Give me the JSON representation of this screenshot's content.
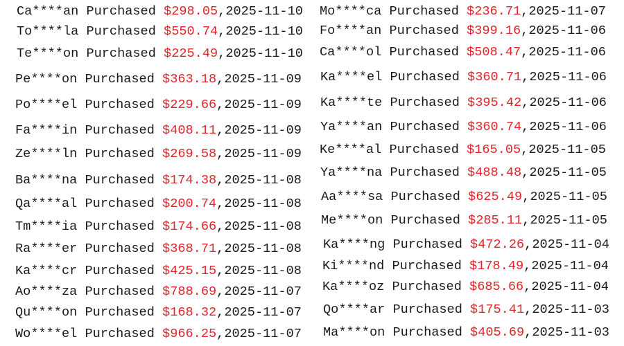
{
  "colors": {
    "text": "#1a1a1a",
    "amount": "#e0242a"
  },
  "columns": [
    {
      "rows": [
        {
          "name": "Ca****an",
          "action": "Purchased",
          "amount": "$298.05",
          "date": "2025-11-10"
        },
        {
          "name": "To****la",
          "action": "Purchased",
          "amount": "$550.74",
          "date": "2025-11-10"
        },
        {
          "name": "Te****on",
          "action": "Purchased",
          "amount": "$225.49",
          "date": "2025-11-10"
        },
        {
          "name": "Pe****on",
          "action": "Purchased",
          "amount": "$363.18",
          "date": "2025-11-09"
        },
        {
          "name": "Po****el",
          "action": "Purchased",
          "amount": "$229.66",
          "date": "2025-11-09"
        },
        {
          "name": "Fa****in",
          "action": "Purchased",
          "amount": "$408.11",
          "date": "2025-11-09"
        },
        {
          "name": "Ze****ln",
          "action": "Purchased",
          "amount": "$269.58",
          "date": "2025-11-09"
        },
        {
          "name": "Ba****na",
          "action": "Purchased",
          "amount": "$174.38",
          "date": "2025-11-08"
        },
        {
          "name": "Qa****al",
          "action": "Purchased",
          "amount": "$200.74",
          "date": "2025-11-08"
        },
        {
          "name": "Tm****ia",
          "action": "Purchased",
          "amount": "$174.66",
          "date": "2025-11-08"
        },
        {
          "name": "Ra****er",
          "action": "Purchased",
          "amount": "$368.71",
          "date": "2025-11-08"
        },
        {
          "name": "Ka****cr",
          "action": "Purchased",
          "amount": "$425.15",
          "date": "2025-11-08"
        },
        {
          "name": "Ao****za",
          "action": "Purchased",
          "amount": "$788.69",
          "date": "2025-11-07"
        },
        {
          "name": "Qu****on",
          "action": "Purchased",
          "amount": "$168.32",
          "date": "2025-11-07"
        },
        {
          "name": "Wo****el",
          "action": "Purchased",
          "amount": "$966.25",
          "date": "2025-11-07"
        }
      ]
    },
    {
      "rows": [
        {
          "name": "Mo****ca",
          "action": "Purchased",
          "amount": "$236.71",
          "date": "2025-11-07"
        },
        {
          "name": "Fo****an",
          "action": "Purchased",
          "amount": "$399.16",
          "date": "2025-11-06"
        },
        {
          "name": "Ca****ol",
          "action": "Purchased",
          "amount": "$508.47",
          "date": "2025-11-06"
        },
        {
          "name": "Ka****el",
          "action": "Purchased",
          "amount": "$360.71",
          "date": "2025-11-06"
        },
        {
          "name": "Ka****te",
          "action": "Purchased",
          "amount": "$395.42",
          "date": "2025-11-06"
        },
        {
          "name": "Ya****an",
          "action": "Purchased",
          "amount": "$360.74",
          "date": "2025-11-06"
        },
        {
          "name": "Ke****al",
          "action": "Purchased",
          "amount": "$165.05",
          "date": "2025-11-05"
        },
        {
          "name": "Ya****na",
          "action": "Purchased",
          "amount": "$488.48",
          "date": "2025-11-05"
        },
        {
          "name": "Aa****sa",
          "action": "Purchased",
          "amount": "$625.49",
          "date": "2025-11-05"
        },
        {
          "name": "Me****on",
          "action": "Purchased",
          "amount": "$285.11",
          "date": "2025-11-05"
        },
        {
          "name": "Ka****ng",
          "action": "Purchased",
          "amount": "$472.26",
          "date": "2025-11-04"
        },
        {
          "name": "Ki****nd",
          "action": "Purchased",
          "amount": "$178.49",
          "date": "2025-11-04"
        },
        {
          "name": "Ka****oz",
          "action": "Purchased",
          "amount": "$685.66",
          "date": "2025-11-04"
        },
        {
          "name": "Qo****ar",
          "action": "Purchased",
          "amount": "$175.41",
          "date": "2025-11-03"
        },
        {
          "name": "Ma****on",
          "action": "Purchased",
          "amount": "$405.69",
          "date": "2025-11-03"
        }
      ]
    }
  ]
}
